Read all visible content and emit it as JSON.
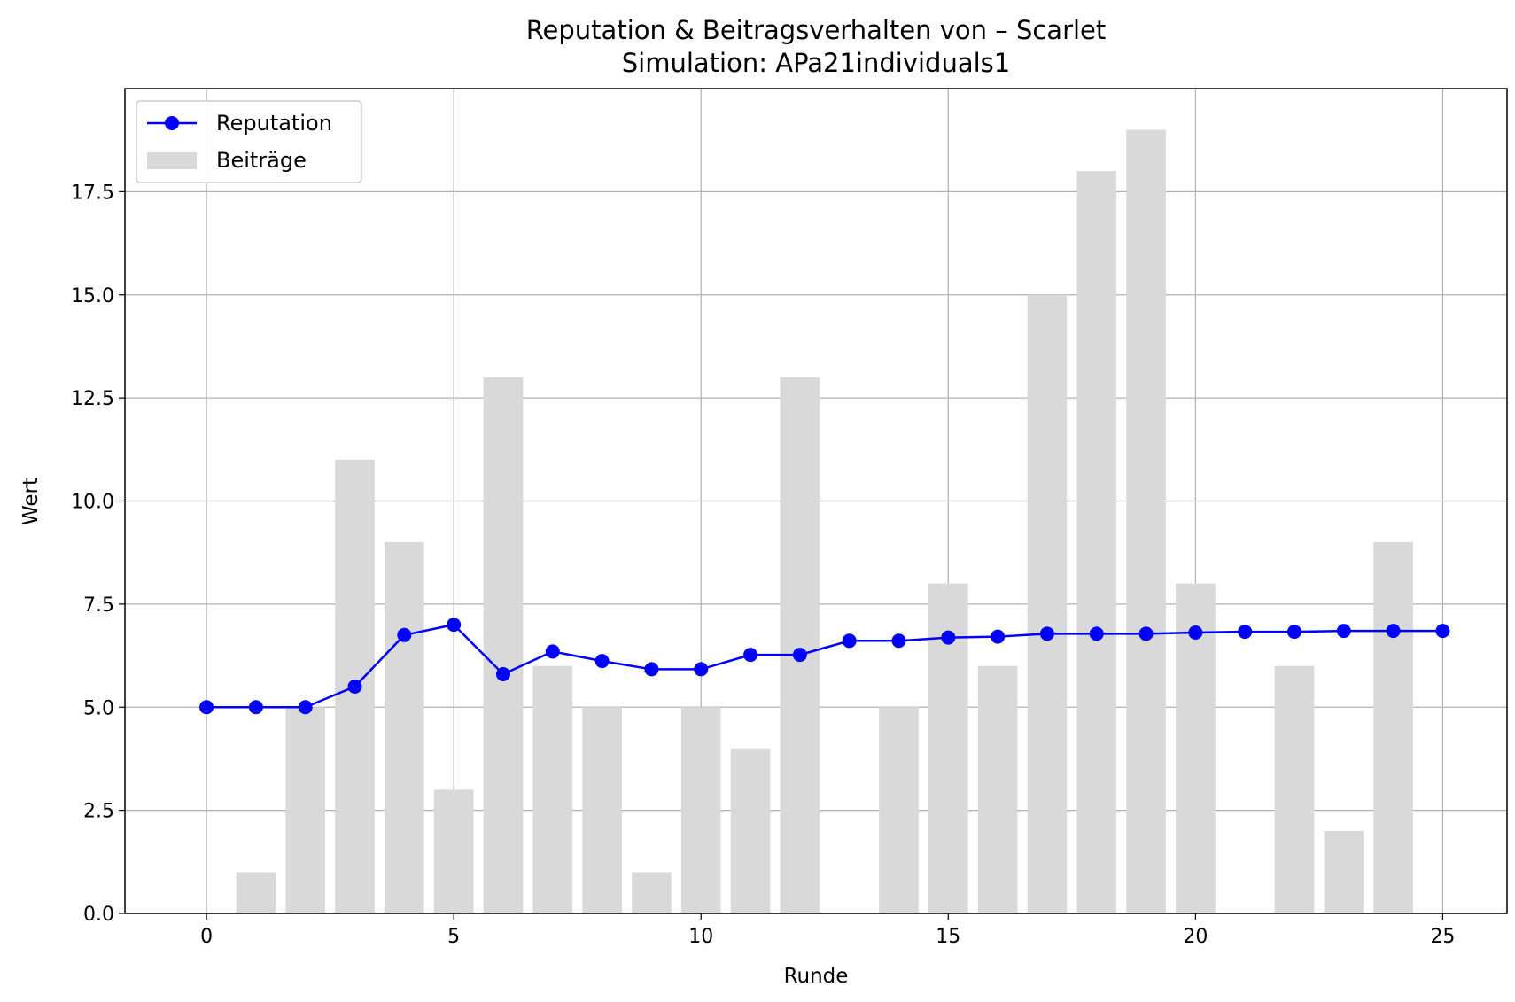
{
  "chart_data": {
    "type": "bar+line",
    "title": "Reputation & Beitragsverhalten von – Scarlet",
    "subtitle": "Simulation: APa21individuals1",
    "xlabel": "Runde",
    "ylabel": "Wert",
    "xlim": [
      -1.65,
      26.3
    ],
    "ylim": [
      0,
      20
    ],
    "x_ticks": [
      "0",
      "5",
      "10",
      "15",
      "20",
      "25"
    ],
    "y_ticks": [
      "0.0",
      "2.5",
      "5.0",
      "7.5",
      "10.0",
      "12.5",
      "15.0",
      "17.5"
    ],
    "grid": true,
    "legend_position": "top-left",
    "x": [
      0,
      1,
      2,
      3,
      4,
      5,
      6,
      7,
      8,
      9,
      10,
      11,
      12,
      13,
      14,
      15,
      16,
      17,
      18,
      19,
      20,
      21,
      22,
      23,
      24,
      25
    ],
    "series": [
      {
        "name": "Reputation",
        "kind": "line",
        "color": "#0000ff",
        "marker": "circle",
        "values": [
          5.0,
          5.0,
          5.0,
          5.5,
          6.75,
          7.0,
          5.8,
          6.35,
          6.12,
          5.92,
          5.92,
          6.27,
          6.27,
          6.61,
          6.61,
          6.69,
          6.71,
          6.78,
          6.78,
          6.78,
          6.81,
          6.83,
          6.83,
          6.85,
          6.85,
          6.85
        ]
      },
      {
        "name": "Beiträge",
        "kind": "bar",
        "color": "#d9d9d9",
        "values": [
          0,
          1,
          5,
          11,
          9,
          3,
          13,
          6,
          5,
          1,
          5,
          4,
          13,
          0,
          5,
          8,
          6,
          15,
          18,
          19,
          8,
          0,
          6,
          2,
          9,
          0
        ]
      }
    ]
  }
}
